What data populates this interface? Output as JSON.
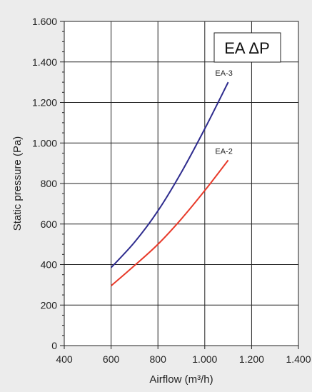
{
  "chart_data": {
    "type": "line",
    "title": "EA ΔP",
    "xlabel": "Airflow (m³/h)",
    "ylabel": "Static pressure (Pa)",
    "xlim": [
      400,
      1400
    ],
    "ylim": [
      0,
      1600
    ],
    "xticks": [
      400,
      600,
      800,
      1000,
      1200,
      1400
    ],
    "yticks": [
      0,
      200,
      400,
      600,
      800,
      1000,
      1200,
      1400,
      1600
    ],
    "xtick_labels": [
      "400",
      "600",
      "800",
      "1.000",
      "1.200",
      "1.400"
    ],
    "ytick_labels": [
      "0",
      "200",
      "400",
      "600",
      "800",
      "1.000",
      "1.200",
      "1.400",
      "1.600"
    ],
    "grid": true,
    "series": [
      {
        "name": "EA-3",
        "color": "#2e2c8e",
        "x": [
          600,
          700,
          800,
          900,
          1000,
          1100
        ],
        "y": [
          385,
          510,
          665,
          855,
          1070,
          1300
        ]
      },
      {
        "name": "EA-2",
        "color": "#e83a2a",
        "x": [
          600,
          700,
          800,
          900,
          1000,
          1100
        ],
        "y": [
          295,
          395,
          500,
          625,
          765,
          915
        ]
      }
    ]
  }
}
